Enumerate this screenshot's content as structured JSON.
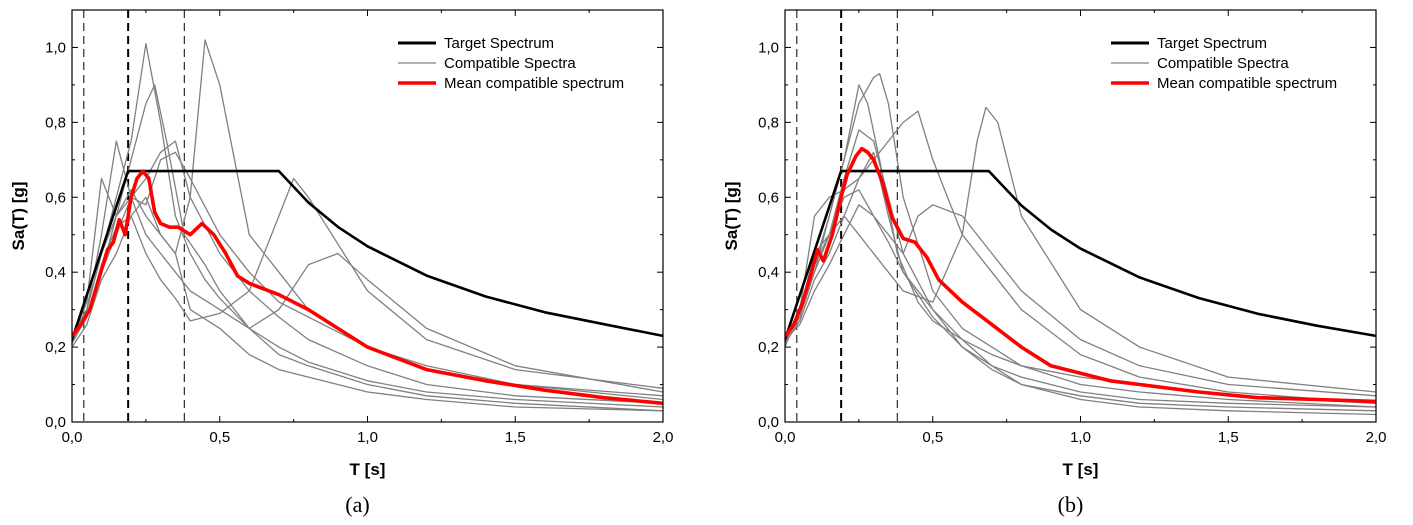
{
  "chart_data": [
    {
      "type": "line",
      "caption": "(a)",
      "xlabel": "T [s]",
      "ylabel": "Sa(T) [g]",
      "xlim": [
        0,
        2.0
      ],
      "ylim": [
        0,
        1.1
      ],
      "xticks": [
        "0,0",
        "0,5",
        "1,0",
        "1,5",
        "2,0"
      ],
      "yticks": [
        "0,0",
        "0,2",
        "0,4",
        "0,6",
        "0,8",
        "1,0"
      ],
      "legend_position": "top-right",
      "legend": [
        "Target Spectrum",
        "Compatible Spectra",
        "Mean compatible spectrum"
      ],
      "colors": {
        "target": "#000000",
        "compatible": "#808080",
        "mean": "#ff0000"
      },
      "vlines": [
        {
          "x": 0.04,
          "style": "dashed",
          "width": 1
        },
        {
          "x": 0.19,
          "style": "dashed",
          "width": 2
        },
        {
          "x": 0.38,
          "style": "dashed",
          "width": 1
        }
      ],
      "series": [
        {
          "name": "Target Spectrum",
          "role": "target",
          "x": [
            0,
            0.19,
            0.7,
            0.8,
            0.9,
            1.0,
            1.2,
            1.4,
            1.6,
            1.8,
            2.0
          ],
          "y": [
            0.22,
            0.67,
            0.67,
            0.586,
            0.521,
            0.469,
            0.391,
            0.335,
            0.293,
            0.261,
            0.23
          ]
        },
        {
          "role": "compatible",
          "x": [
            0,
            0.05,
            0.1,
            0.15,
            0.2,
            0.25,
            0.3,
            0.35,
            0.4,
            0.45,
            0.5,
            0.6,
            0.7,
            0.8,
            1.0,
            1.2,
            1.5,
            2.0
          ],
          "y": [
            0.22,
            0.3,
            0.45,
            0.6,
            0.75,
            1.01,
            0.8,
            0.55,
            0.45,
            0.38,
            0.33,
            0.25,
            0.2,
            0.16,
            0.11,
            0.08,
            0.06,
            0.04
          ]
        },
        {
          "role": "compatible",
          "x": [
            0,
            0.05,
            0.1,
            0.15,
            0.2,
            0.25,
            0.28,
            0.32,
            0.38,
            0.45,
            0.5,
            0.6,
            0.7,
            0.8,
            1.0,
            1.2,
            1.5,
            2.0
          ],
          "y": [
            0.21,
            0.28,
            0.4,
            0.55,
            0.7,
            0.85,
            0.9,
            0.75,
            0.5,
            0.42,
            0.35,
            0.25,
            0.18,
            0.15,
            0.1,
            0.07,
            0.05,
            0.03
          ]
        },
        {
          "role": "compatible",
          "x": [
            0,
            0.05,
            0.1,
            0.15,
            0.2,
            0.25,
            0.3,
            0.35,
            0.4,
            0.45,
            0.5,
            0.55,
            0.6,
            0.7,
            0.8,
            1.0,
            1.2,
            1.5,
            2.0
          ],
          "y": [
            0.23,
            0.3,
            0.45,
            0.55,
            0.62,
            0.55,
            0.5,
            0.45,
            0.6,
            1.02,
            0.9,
            0.7,
            0.5,
            0.4,
            0.3,
            0.2,
            0.15,
            0.1,
            0.06
          ]
        },
        {
          "role": "compatible",
          "x": [
            0,
            0.05,
            0.1,
            0.15,
            0.2,
            0.25,
            0.3,
            0.35,
            0.4,
            0.5,
            0.6,
            0.7,
            0.75,
            0.8,
            1.0,
            1.2,
            1.5,
            2.0
          ],
          "y": [
            0.22,
            0.28,
            0.42,
            0.52,
            0.55,
            0.45,
            0.38,
            0.33,
            0.27,
            0.29,
            0.35,
            0.55,
            0.65,
            0.6,
            0.35,
            0.22,
            0.14,
            0.09
          ]
        },
        {
          "role": "compatible",
          "x": [
            0,
            0.05,
            0.1,
            0.15,
            0.2,
            0.25,
            0.3,
            0.35,
            0.4,
            0.5,
            0.6,
            0.7,
            0.8,
            0.9,
            1.0,
            1.2,
            1.5,
            2.0
          ],
          "y": [
            0.21,
            0.3,
            0.5,
            0.75,
            0.6,
            0.5,
            0.45,
            0.4,
            0.35,
            0.3,
            0.25,
            0.3,
            0.42,
            0.45,
            0.38,
            0.25,
            0.15,
            0.08
          ]
        },
        {
          "role": "compatible",
          "x": [
            0,
            0.05,
            0.1,
            0.15,
            0.2,
            0.25,
            0.3,
            0.35,
            0.4,
            0.5,
            0.6,
            0.7,
            0.8,
            1.0,
            1.2,
            1.5,
            2.0
          ],
          "y": [
            0.22,
            0.32,
            0.65,
            0.55,
            0.6,
            0.65,
            0.72,
            0.75,
            0.6,
            0.45,
            0.35,
            0.28,
            0.22,
            0.15,
            0.1,
            0.07,
            0.05
          ]
        },
        {
          "role": "compatible",
          "x": [
            0,
            0.05,
            0.1,
            0.15,
            0.2,
            0.25,
            0.3,
            0.35,
            0.4,
            0.5,
            0.6,
            0.7,
            0.8,
            1.0,
            1.2,
            1.5,
            2.0
          ],
          "y": [
            0.22,
            0.28,
            0.4,
            0.5,
            0.6,
            0.58,
            0.7,
            0.72,
            0.65,
            0.5,
            0.4,
            0.32,
            0.28,
            0.2,
            0.14,
            0.1,
            0.07
          ]
        },
        {
          "role": "compatible",
          "x": [
            0,
            0.05,
            0.1,
            0.15,
            0.2,
            0.25,
            0.3,
            0.35,
            0.4,
            0.5,
            0.6,
            0.7,
            0.8,
            1.0,
            1.2,
            1.5,
            2.0
          ],
          "y": [
            0.2,
            0.26,
            0.38,
            0.45,
            0.55,
            0.6,
            0.5,
            0.45,
            0.3,
            0.25,
            0.18,
            0.14,
            0.12,
            0.08,
            0.06,
            0.04,
            0.03
          ]
        },
        {
          "name": "Mean compatible spectrum",
          "role": "mean",
          "x": [
            0,
            0.03,
            0.06,
            0.09,
            0.12,
            0.14,
            0.16,
            0.18,
            0.2,
            0.22,
            0.24,
            0.26,
            0.28,
            0.3,
            0.33,
            0.36,
            0.38,
            0.4,
            0.44,
            0.48,
            0.52,
            0.56,
            0.6,
            0.7,
            0.8,
            0.9,
            1.0,
            1.2,
            1.4,
            1.6,
            1.8,
            2.0
          ],
          "y": [
            0.23,
            0.26,
            0.3,
            0.38,
            0.46,
            0.48,
            0.54,
            0.5,
            0.6,
            0.65,
            0.67,
            0.65,
            0.56,
            0.53,
            0.52,
            0.52,
            0.51,
            0.5,
            0.53,
            0.5,
            0.45,
            0.39,
            0.37,
            0.34,
            0.3,
            0.25,
            0.2,
            0.14,
            0.11,
            0.085,
            0.065,
            0.05
          ]
        }
      ]
    },
    {
      "type": "line",
      "caption": "(b)",
      "xlabel": "T [s]",
      "ylabel": "Sa(T) [g]",
      "xlim": [
        0,
        2.0
      ],
      "ylim": [
        0,
        1.1
      ],
      "xticks": [
        "0,0",
        "0,5",
        "1,0",
        "1,5",
        "2,0"
      ],
      "yticks": [
        "0,0",
        "0,2",
        "0,4",
        "0,6",
        "0,8",
        "1,0"
      ],
      "legend_position": "top-right",
      "legend": [
        "Target Spectrum",
        "Compatible Spectra",
        "Mean compatible spectrum"
      ],
      "colors": {
        "target": "#000000",
        "compatible": "#808080",
        "mean": "#ff0000"
      },
      "vlines": [
        {
          "x": 0.04,
          "style": "dashed",
          "width": 1
        },
        {
          "x": 0.19,
          "style": "dashed",
          "width": 2
        },
        {
          "x": 0.38,
          "style": "dashed",
          "width": 1
        }
      ],
      "series": [
        {
          "name": "Target Spectrum",
          "role": "target",
          "x": [
            0,
            0.19,
            0.69,
            0.8,
            0.9,
            1.0,
            1.2,
            1.4,
            1.6,
            1.8,
            2.0
          ],
          "y": [
            0.22,
            0.67,
            0.67,
            0.578,
            0.514,
            0.463,
            0.386,
            0.331,
            0.289,
            0.257,
            0.23
          ]
        },
        {
          "role": "compatible",
          "x": [
            0,
            0.05,
            0.1,
            0.15,
            0.2,
            0.25,
            0.3,
            0.32,
            0.35,
            0.4,
            0.5,
            0.6,
            0.7,
            0.8,
            1.0,
            1.2,
            1.5,
            2.0
          ],
          "y": [
            0.22,
            0.3,
            0.42,
            0.55,
            0.7,
            0.85,
            0.92,
            0.93,
            0.85,
            0.6,
            0.35,
            0.25,
            0.2,
            0.15,
            0.1,
            0.08,
            0.06,
            0.04
          ]
        },
        {
          "role": "compatible",
          "x": [
            0,
            0.05,
            0.1,
            0.15,
            0.2,
            0.25,
            0.28,
            0.32,
            0.38,
            0.45,
            0.5,
            0.6,
            0.7,
            0.8,
            1.0,
            1.2,
            1.5,
            2.0
          ],
          "y": [
            0.21,
            0.28,
            0.4,
            0.55,
            0.7,
            0.9,
            0.85,
            0.7,
            0.45,
            0.32,
            0.27,
            0.22,
            0.18,
            0.15,
            0.12,
            0.1,
            0.07,
            0.05
          ]
        },
        {
          "role": "compatible",
          "x": [
            0,
            0.05,
            0.1,
            0.15,
            0.2,
            0.25,
            0.3,
            0.35,
            0.4,
            0.45,
            0.5,
            0.6,
            0.7,
            0.8,
            1.0,
            1.2,
            1.5,
            2.0
          ],
          "y": [
            0.22,
            0.3,
            0.4,
            0.5,
            0.6,
            0.62,
            0.55,
            0.5,
            0.45,
            0.55,
            0.58,
            0.55,
            0.45,
            0.35,
            0.22,
            0.15,
            0.1,
            0.07
          ]
        },
        {
          "role": "compatible",
          "x": [
            0,
            0.05,
            0.1,
            0.15,
            0.2,
            0.25,
            0.3,
            0.35,
            0.4,
            0.5,
            0.6,
            0.65,
            0.68,
            0.72,
            0.8,
            1.0,
            1.2,
            1.5,
            2.0
          ],
          "y": [
            0.22,
            0.28,
            0.42,
            0.5,
            0.55,
            0.5,
            0.45,
            0.4,
            0.35,
            0.32,
            0.5,
            0.75,
            0.84,
            0.8,
            0.55,
            0.3,
            0.2,
            0.12,
            0.08
          ]
        },
        {
          "role": "compatible",
          "x": [
            0,
            0.05,
            0.1,
            0.15,
            0.2,
            0.25,
            0.3,
            0.35,
            0.4,
            0.45,
            0.5,
            0.6,
            0.7,
            0.8,
            1.0,
            1.2,
            1.5,
            2.0
          ],
          "y": [
            0.2,
            0.3,
            0.55,
            0.6,
            0.62,
            0.65,
            0.7,
            0.75,
            0.8,
            0.83,
            0.7,
            0.5,
            0.4,
            0.3,
            0.18,
            0.12,
            0.08,
            0.05
          ]
        },
        {
          "role": "compatible",
          "x": [
            0,
            0.05,
            0.1,
            0.15,
            0.2,
            0.25,
            0.3,
            0.35,
            0.4,
            0.5,
            0.6,
            0.7,
            0.8,
            1.0,
            1.2,
            1.5,
            2.0
          ],
          "y": [
            0.22,
            0.3,
            0.45,
            0.5,
            0.65,
            0.78,
            0.75,
            0.6,
            0.45,
            0.3,
            0.22,
            0.15,
            0.12,
            0.08,
            0.06,
            0.05,
            0.04
          ]
        },
        {
          "role": "compatible",
          "x": [
            0,
            0.05,
            0.1,
            0.15,
            0.2,
            0.25,
            0.3,
            0.35,
            0.4,
            0.5,
            0.6,
            0.7,
            0.8,
            1.0,
            1.2,
            1.5,
            2.0
          ],
          "y": [
            0.21,
            0.27,
            0.38,
            0.45,
            0.55,
            0.65,
            0.72,
            0.55,
            0.4,
            0.3,
            0.2,
            0.15,
            0.1,
            0.06,
            0.04,
            0.03,
            0.02
          ]
        },
        {
          "role": "compatible",
          "x": [
            0,
            0.05,
            0.1,
            0.15,
            0.2,
            0.25,
            0.3,
            0.35,
            0.4,
            0.5,
            0.6,
            0.7,
            0.8,
            1.0,
            1.2,
            1.5,
            2.0
          ],
          "y": [
            0.22,
            0.26,
            0.35,
            0.42,
            0.5,
            0.58,
            0.55,
            0.48,
            0.4,
            0.28,
            0.2,
            0.14,
            0.1,
            0.07,
            0.05,
            0.04,
            0.03
          ]
        },
        {
          "name": "Mean compatible spectrum",
          "role": "mean",
          "x": [
            0,
            0.03,
            0.06,
            0.09,
            0.11,
            0.13,
            0.16,
            0.19,
            0.21,
            0.24,
            0.26,
            0.28,
            0.3,
            0.33,
            0.36,
            0.4,
            0.44,
            0.48,
            0.52,
            0.56,
            0.6,
            0.7,
            0.8,
            0.9,
            1.0,
            1.1,
            1.2,
            1.4,
            1.6,
            1.8,
            2.0
          ],
          "y": [
            0.23,
            0.26,
            0.32,
            0.4,
            0.46,
            0.43,
            0.5,
            0.6,
            0.66,
            0.71,
            0.73,
            0.72,
            0.7,
            0.64,
            0.55,
            0.49,
            0.48,
            0.44,
            0.38,
            0.35,
            0.32,
            0.26,
            0.2,
            0.15,
            0.13,
            0.11,
            0.1,
            0.08,
            0.065,
            0.06,
            0.055
          ]
        }
      ]
    }
  ]
}
